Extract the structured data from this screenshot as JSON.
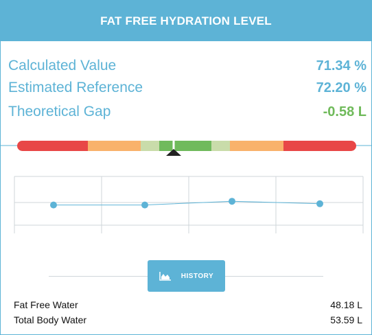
{
  "header": {
    "title": "FAT FREE HYDRATION LEVEL"
  },
  "metrics": [
    {
      "label": "Calculated Value",
      "value": "71.34 %"
    },
    {
      "label": "Estimated Reference",
      "value": "72.20 %"
    },
    {
      "label": "Theoretical Gap",
      "value": "-0.58 L"
    }
  ],
  "gauge": {
    "segments": [
      "red",
      "orange",
      "light-green",
      "green",
      "light-green",
      "orange",
      "red"
    ],
    "colors": {
      "red": "#e84747",
      "orange": "#f9b26b",
      "light_green": "#c9dcaa",
      "green": "#70ba5c"
    }
  },
  "chart_data": {
    "type": "line",
    "values": [
      -1,
      -1,
      0.5,
      -0.5
    ],
    "color": "#5db3d6",
    "grid": true
  },
  "history": {
    "label": "HISTORY",
    "icon": "area-chart-icon"
  },
  "water": [
    {
      "label": "Fat Free Water",
      "value": "48.18 L"
    },
    {
      "label": "Total Body Water",
      "value": "53.59 L"
    }
  ]
}
